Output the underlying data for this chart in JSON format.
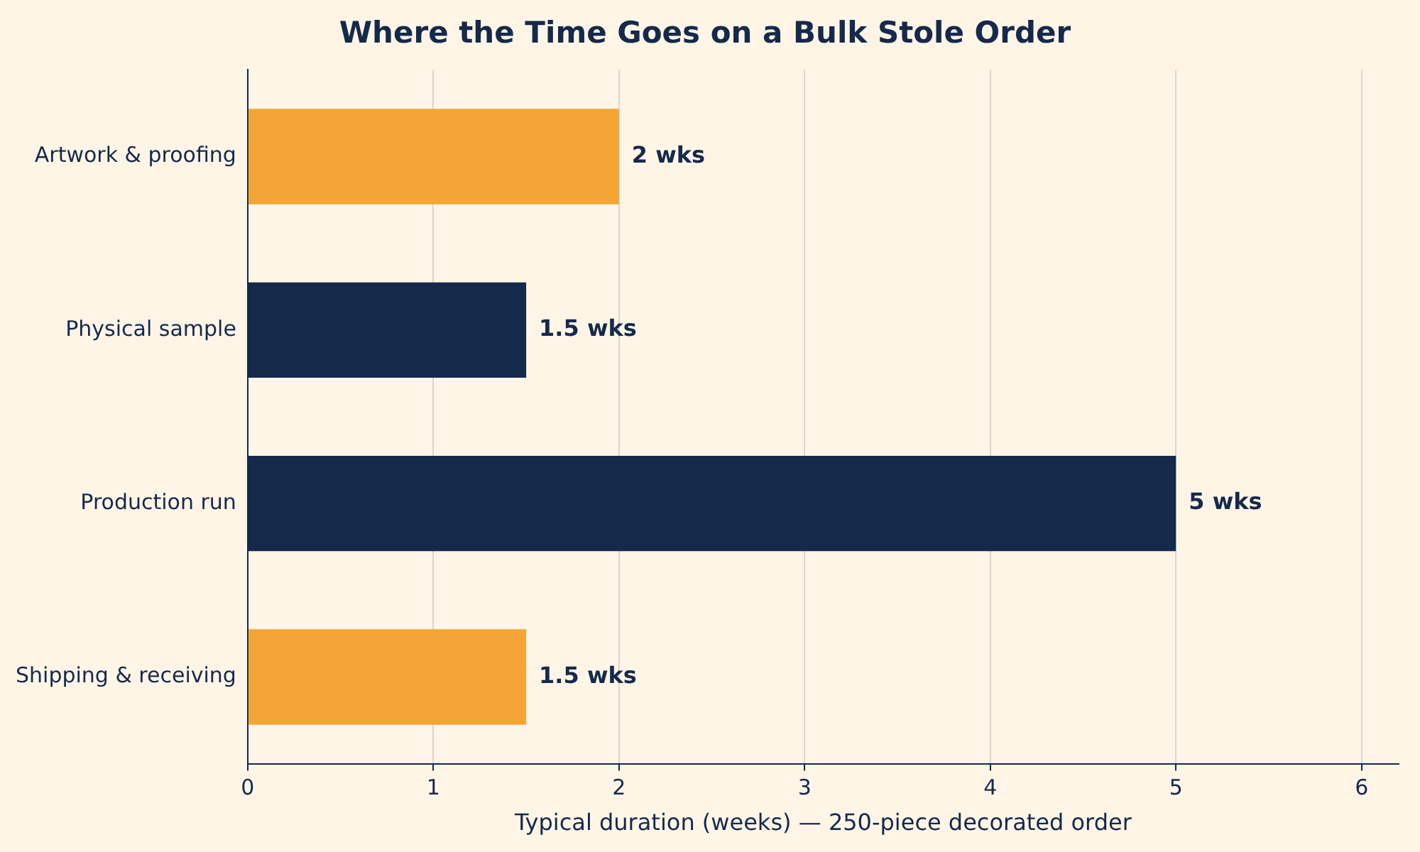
{
  "chart_data": {
    "type": "bar",
    "orientation": "horizontal",
    "title": "Where the Time Goes on a Bulk Stole Order",
    "xlabel": "Typical duration (weeks) — 250-piece decorated order",
    "categories": [
      "Artwork & proofing",
      "Physical sample",
      "Production run",
      "Shipping & receiving"
    ],
    "values": [
      2,
      1.5,
      5,
      1.5
    ],
    "colors": [
      "#f5a535",
      "#15294b",
      "#15294b",
      "#f5a535"
    ],
    "value_labels": [
      "2 wks",
      "1.5 wks",
      "5 wks",
      "1.5 wks"
    ],
    "xlim": [
      0,
      6.2
    ],
    "xticks": [
      0,
      1,
      2,
      3,
      4,
      5,
      6
    ],
    "grid": "x",
    "legend": false
  }
}
